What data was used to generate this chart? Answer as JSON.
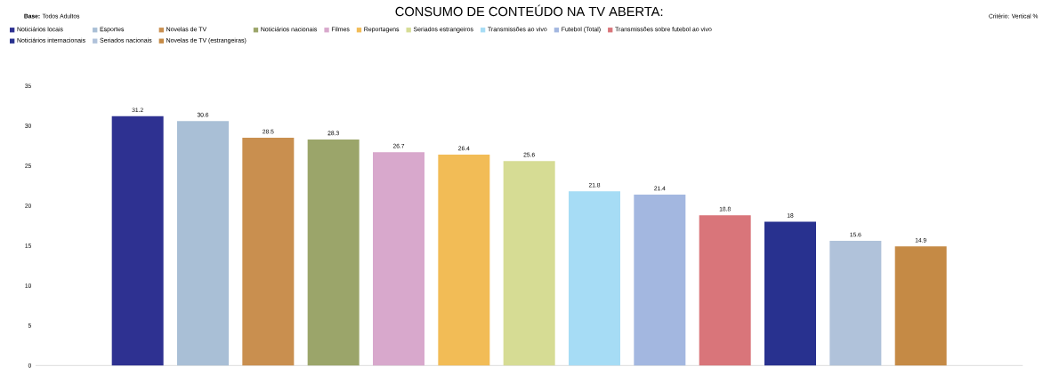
{
  "chart_data": {
    "type": "bar",
    "title": "CONSUMO DE CONTEÚDO NA TV ABERTA:",
    "annotations": [
      "**Base:** Todos Adultos",
      "Critério: Vertical %"
    ],
    "categories": [
      null
    ],
    "series": [
      {
        "name": "Noticiários locais",
        "color": "#2e3191",
        "values": [
          31.2
        ]
      },
      {
        "name": "Esportes",
        "color": "#a9bfd6",
        "values": [
          30.6
        ]
      },
      {
        "name": "Novelas de TV",
        "color": "#c98f4f",
        "values": [
          28.5
        ]
      },
      {
        "name": "Noticiários nacionais",
        "color": "#9ba56a",
        "values": [
          28.3
        ]
      },
      {
        "name": "Filmes",
        "color": "#d8a8cc",
        "values": [
          26.7
        ]
      },
      {
        "name": "Reportagens",
        "color": "#f2bc56",
        "values": [
          26.4
        ]
      },
      {
        "name": "Seriados estrangeiros",
        "color": "#d6dc94",
        "values": [
          25.6
        ]
      },
      {
        "name": "Transmissões ao vivo",
        "color": "#a6dcf5",
        "values": [
          21.8
        ]
      },
      {
        "name": "Futebol (Total)",
        "color": "#a3b7e0",
        "values": [
          21.4
        ]
      },
      {
        "name": "Transmissões sobre futebol ao vivo",
        "color": "#d9757a",
        "values": [
          18.8
        ]
      },
      {
        "name": "Noticiários internacionais",
        "color": "#28318f",
        "values": [
          18
        ]
      },
      {
        "name": "Seriados nacionais",
        "color": "#b0c2da",
        "values": [
          15.6
        ]
      },
      {
        "name": "Novelas de TV (estrangeiras)",
        "color": "#c58a45",
        "values": [
          14.9
        ]
      }
    ],
    "ylim": [
      0,
      35
    ],
    "yticks": [
      0,
      5,
      10,
      15,
      20,
      25,
      30,
      35
    ],
    "data_labels": true,
    "legend": "top left",
    "grid": false
  }
}
